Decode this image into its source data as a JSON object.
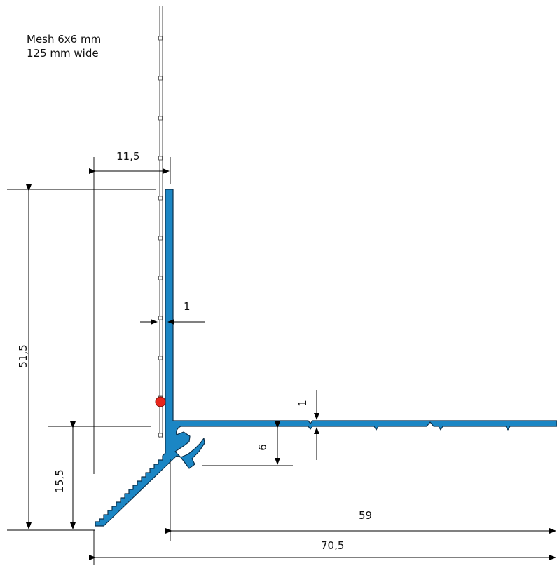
{
  "note": {
    "line1": "Mesh 6x6 mm",
    "line2": "125 mm wide"
  },
  "dimensions": {
    "mesh_offset": "11,5",
    "total_height": "51,5",
    "flange_thickness": "1",
    "leg_thickness": "1",
    "nose_height": "15,5",
    "channel_depth": "6",
    "leg_length": "59",
    "total_width": "70,5"
  },
  "colors": {
    "profile": "#1b86c4",
    "profile_outline": "#0b2f4a",
    "marker": "#e8261c"
  }
}
